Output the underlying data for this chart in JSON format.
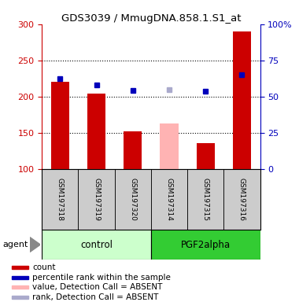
{
  "title": "GDS3039 / MmugDNA.858.1.S1_at",
  "samples": [
    "GSM197318",
    "GSM197319",
    "GSM197320",
    "GSM197314",
    "GSM197315",
    "GSM197316"
  ],
  "bar_values": [
    220,
    204,
    152,
    163,
    136,
    290
  ],
  "bar_colors": [
    "#cc0000",
    "#cc0000",
    "#cc0000",
    "#ffb3b3",
    "#cc0000",
    "#cc0000"
  ],
  "dot_values": [
    225,
    216,
    209,
    210,
    208,
    230
  ],
  "dot_colors": [
    "#0000bb",
    "#0000bb",
    "#0000bb",
    "#aaaacc",
    "#0000bb",
    "#0000bb"
  ],
  "ylim_left": [
    100,
    300
  ],
  "left_ticks": [
    100,
    150,
    200,
    250,
    300
  ],
  "right_ticks": [
    0,
    25,
    50,
    75,
    100
  ],
  "right_tick_labels": [
    "0",
    "25",
    "50",
    "75",
    "100%"
  ],
  "control_color": "#ccffcc",
  "pgf2alpha_color": "#33cc33",
  "sample_bg_color": "#cccccc",
  "dotted_line_values": [
    150,
    200,
    250
  ],
  "left_color": "#cc0000",
  "right_color": "#0000bb",
  "legend_entries": [
    {
      "color": "#cc0000",
      "label": "count"
    },
    {
      "color": "#0000bb",
      "label": "percentile rank within the sample"
    },
    {
      "color": "#ffb3b3",
      "label": "value, Detection Call = ABSENT"
    },
    {
      "color": "#aaaacc",
      "label": "rank, Detection Call = ABSENT"
    }
  ]
}
